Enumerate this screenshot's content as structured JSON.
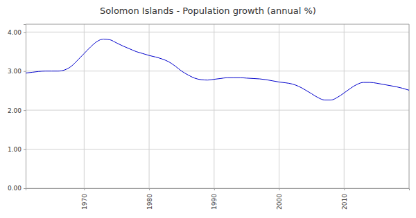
{
  "chart_data": {
    "type": "line",
    "title": "Solomon Islands - Population growth (annual %)",
    "x": [
      1961,
      1962,
      1963,
      1964,
      1965,
      1966,
      1967,
      1968,
      1969,
      1970,
      1971,
      1972,
      1973,
      1974,
      1975,
      1976,
      1977,
      1978,
      1979,
      1980,
      1981,
      1982,
      1983,
      1984,
      1985,
      1986,
      1987,
      1988,
      1989,
      1990,
      1991,
      1992,
      1993,
      1994,
      1995,
      1996,
      1997,
      1998,
      1999,
      2000,
      2001,
      2002,
      2003,
      2004,
      2005,
      2006,
      2007,
      2008,
      2009,
      2010,
      2011,
      2012,
      2013,
      2014,
      2015,
      2016,
      2017,
      2018,
      2019,
      2020
    ],
    "values": [
      2.95,
      2.97,
      2.99,
      3.0,
      3.0,
      3.0,
      3.03,
      3.12,
      3.28,
      3.45,
      3.62,
      3.76,
      3.82,
      3.8,
      3.72,
      3.64,
      3.57,
      3.5,
      3.45,
      3.4,
      3.36,
      3.31,
      3.24,
      3.13,
      3.0,
      2.9,
      2.82,
      2.78,
      2.77,
      2.79,
      2.81,
      2.83,
      2.83,
      2.83,
      2.82,
      2.81,
      2.8,
      2.78,
      2.75,
      2.72,
      2.7,
      2.67,
      2.61,
      2.52,
      2.42,
      2.32,
      2.26,
      2.26,
      2.33,
      2.44,
      2.56,
      2.66,
      2.71,
      2.71,
      2.69,
      2.66,
      2.63,
      2.6,
      2.56,
      2.51
    ],
    "color": "#0000cc",
    "xlim": [
      1961,
      2020
    ],
    "xticks": [
      1970,
      1980,
      1990,
      2000,
      2010
    ],
    "ylim": [
      0,
      4.2
    ],
    "yticks": [
      {
        "value": 0,
        "label": "0.00"
      },
      {
        "value": 1,
        "label": "1.00"
      },
      {
        "value": 2,
        "label": "2.00"
      },
      {
        "value": 3,
        "label": "3.00"
      },
      {
        "value": 4,
        "label": "4.00"
      }
    ],
    "grid": true
  }
}
